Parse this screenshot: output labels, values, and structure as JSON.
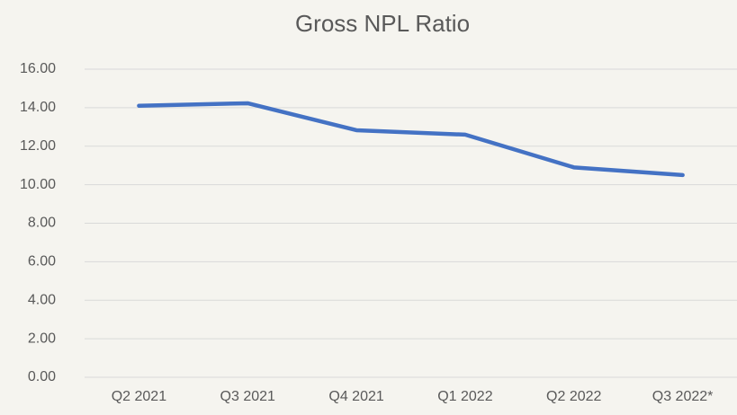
{
  "chart_data": {
    "type": "line",
    "title": "Gross NPL Ratio",
    "categories": [
      "Q2 2021",
      "Q3 2021",
      "Q4 2021",
      "Q1 2022",
      "Q2 2022",
      "Q3 2022*"
    ],
    "values": [
      14.1,
      14.23,
      12.83,
      12.6,
      10.9,
      10.5
    ],
    "color": "#4472c4",
    "ylim": [
      0,
      16
    ],
    "yticks": [
      {
        "value": 0,
        "label": "0.00"
      },
      {
        "value": 2,
        "label": "2.00"
      },
      {
        "value": 4,
        "label": "4.00"
      },
      {
        "value": 6,
        "label": "6.00"
      },
      {
        "value": 8,
        "label": "8.00"
      },
      {
        "value": 10,
        "label": "10.00"
      },
      {
        "value": 12,
        "label": "12.00"
      },
      {
        "value": 14,
        "label": "14.00"
      },
      {
        "value": 16,
        "label": "16.00"
      }
    ],
    "grid": true
  }
}
